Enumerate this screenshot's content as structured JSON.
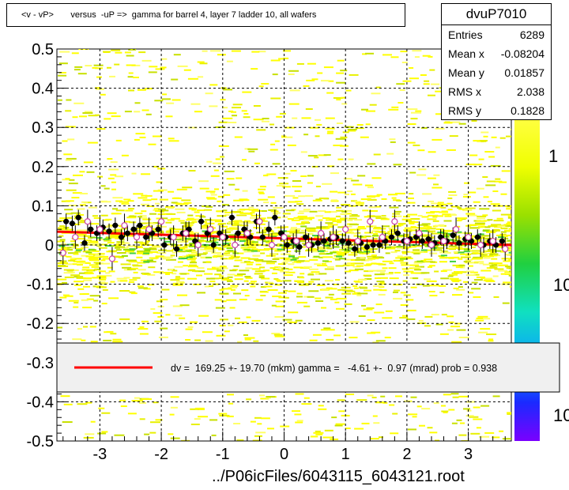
{
  "title": "<v - vP>       versus  -uP =>  gamma for barrel 4, layer 7 ladder 10, all wafers",
  "stats": {
    "name": "dvuP7010",
    "rows": [
      {
        "label": "Entries",
        "value": "6289"
      },
      {
        "label": "Mean x",
        "value": "-0.08204"
      },
      {
        "label": "Mean y",
        "value": "0.01857"
      },
      {
        "label": "RMS x",
        "value": "2.038"
      },
      {
        "label": "RMS y",
        "value": "0.1828"
      }
    ]
  },
  "legend_text": "dv =  169.25 +- 19.70 (mkm) gamma =   -4.61 +-  0.97 (mrad) prob = 0.938",
  "filename": "../P06icFiles/6043115_6043121.root",
  "colors": {
    "fit": "#ff0000",
    "black_profile": "#000000",
    "open_profile": "#cc44aa"
  },
  "chart_data": {
    "type": "scatter",
    "xlim": [
      -3.7,
      3.7
    ],
    "ylim": [
      -0.5,
      0.5
    ],
    "x_ticks": [
      "-3",
      "-2",
      "-1",
      "0",
      "1",
      "2",
      "3"
    ],
    "x_tick_values": [
      -3,
      -2,
      -1,
      0,
      1,
      2,
      3
    ],
    "y_ticks": [
      "-0.5",
      "-0.4",
      "-0.3",
      "-0.2",
      "-0.1",
      "0",
      "0.1",
      "0.2",
      "0.3",
      "0.4",
      "0.5"
    ],
    "y_tick_values": [
      -0.5,
      -0.4,
      -0.3,
      -0.2,
      -0.1,
      0,
      0.1,
      0.2,
      0.3,
      0.4,
      0.5
    ],
    "grid": true,
    "colorbar_labels": [
      "1",
      "10",
      "10"
    ],
    "fit_line": {
      "x": [
        -3.7,
        3.7
      ],
      "y": [
        0.034,
        0.0
      ]
    },
    "series": [
      {
        "marker": "filled-circle",
        "x": [
          -3.55,
          -3.45,
          -3.35,
          -3.25,
          -3.15,
          -3.05,
          -2.95,
          -2.85,
          -2.75,
          -2.65,
          -2.55,
          -2.45,
          -2.35,
          -2.25,
          -2.15,
          -2.05,
          -1.95,
          -1.85,
          -1.75,
          -1.65,
          -1.55,
          -1.45,
          -1.35,
          -1.25,
          -1.15,
          -1.05,
          -0.95,
          -0.85,
          -0.75,
          -0.65,
          -0.55,
          -0.45,
          -0.35,
          -0.25,
          -0.15,
          -0.05,
          0.05,
          0.15,
          0.25,
          0.35,
          0.45,
          0.55,
          0.65,
          0.75,
          0.85,
          0.95,
          1.05,
          1.15,
          1.25,
          1.35,
          1.45,
          1.55,
          1.65,
          1.75,
          1.85,
          1.95,
          2.05,
          2.15,
          2.25,
          2.35,
          2.45,
          2.55,
          2.65,
          2.75,
          2.85,
          2.95,
          3.05,
          3.15,
          3.25,
          3.35,
          3.45,
          3.55
        ],
        "y": [
          0.06,
          0.055,
          0.07,
          0.005,
          0.04,
          0.03,
          0.045,
          0.035,
          0.05,
          0.02,
          0.03,
          0.04,
          0.05,
          0.02,
          0.03,
          0.04,
          0.0,
          0.02,
          -0.01,
          0.03,
          0.04,
          0.01,
          0.06,
          0.03,
          0.0,
          0.03,
          0.02,
          0.07,
          0.03,
          0.04,
          0.02,
          0.06,
          0.02,
          0.04,
          0.07,
          0.03,
          0.0,
          0.01,
          -0.005,
          0.02,
          0.0,
          0.005,
          0.01,
          0.015,
          0.02,
          0.01,
          0.005,
          -0.01,
          0.005,
          -0.005,
          0.0,
          0.0,
          0.01,
          0.02,
          0.03,
          0.01,
          0.015,
          0.02,
          0.01,
          0.015,
          0.005,
          0.02,
          0.01,
          0.025,
          0.005,
          0.015,
          0.01,
          0.02,
          0.0,
          0.01,
          0.0,
          0.01
        ],
        "yerr": [
          0.02,
          0.02,
          0.02,
          0.02,
          0.02,
          0.02,
          0.02,
          0.02,
          0.02,
          0.02,
          0.02,
          0.02,
          0.02,
          0.02,
          0.02,
          0.02,
          0.02,
          0.02,
          0.02,
          0.02,
          0.02,
          0.02,
          0.02,
          0.02,
          0.02,
          0.02,
          0.02,
          0.02,
          0.02,
          0.02,
          0.02,
          0.02,
          0.02,
          0.02,
          0.02,
          0.02,
          0.02,
          0.02,
          0.02,
          0.02,
          0.02,
          0.02,
          0.02,
          0.02,
          0.02,
          0.02,
          0.02,
          0.02,
          0.02,
          0.02,
          0.02,
          0.02,
          0.02,
          0.02,
          0.02,
          0.02,
          0.02,
          0.02,
          0.02,
          0.02,
          0.02,
          0.02,
          0.02,
          0.02,
          0.02,
          0.02,
          0.02,
          0.02,
          0.02,
          0.02,
          0.02,
          0.02
        ]
      },
      {
        "marker": "open-circle",
        "x": [
          -3.6,
          -3.4,
          -3.2,
          -3.0,
          -2.8,
          -2.6,
          -2.4,
          -2.2,
          -2.0,
          -1.8,
          -1.6,
          -1.4,
          -1.2,
          -1.0,
          -0.8,
          -0.6,
          -0.4,
          -0.2,
          0.0,
          0.2,
          0.4,
          0.6,
          0.8,
          1.0,
          1.2,
          1.4,
          1.6,
          1.8,
          2.0,
          2.2,
          2.4,
          2.6,
          2.8,
          3.0,
          3.2,
          3.4,
          3.6
        ],
        "y": [
          -0.02,
          0.02,
          0.06,
          0.04,
          -0.035,
          0.05,
          0.02,
          0.04,
          0.06,
          0.02,
          0.03,
          0.0,
          0.04,
          0.02,
          0.0,
          0.03,
          0.06,
          0.0,
          0.02,
          0.01,
          0.0,
          0.03,
          0.02,
          0.04,
          0.01,
          0.06,
          0.02,
          0.06,
          0.01,
          0.03,
          0.0,
          0.01,
          0.04,
          0.02,
          0.0,
          0.01,
          -0.01
        ],
        "yerr": [
          0.03,
          0.03,
          0.03,
          0.03,
          0.03,
          0.03,
          0.03,
          0.03,
          0.03,
          0.03,
          0.03,
          0.03,
          0.03,
          0.03,
          0.03,
          0.03,
          0.03,
          0.03,
          0.03,
          0.03,
          0.03,
          0.03,
          0.03,
          0.03,
          0.03,
          0.03,
          0.03,
          0.03,
          0.03,
          0.03,
          0.03,
          0.03,
          0.03,
          0.03,
          0.03,
          0.03,
          0.03
        ]
      }
    ]
  }
}
